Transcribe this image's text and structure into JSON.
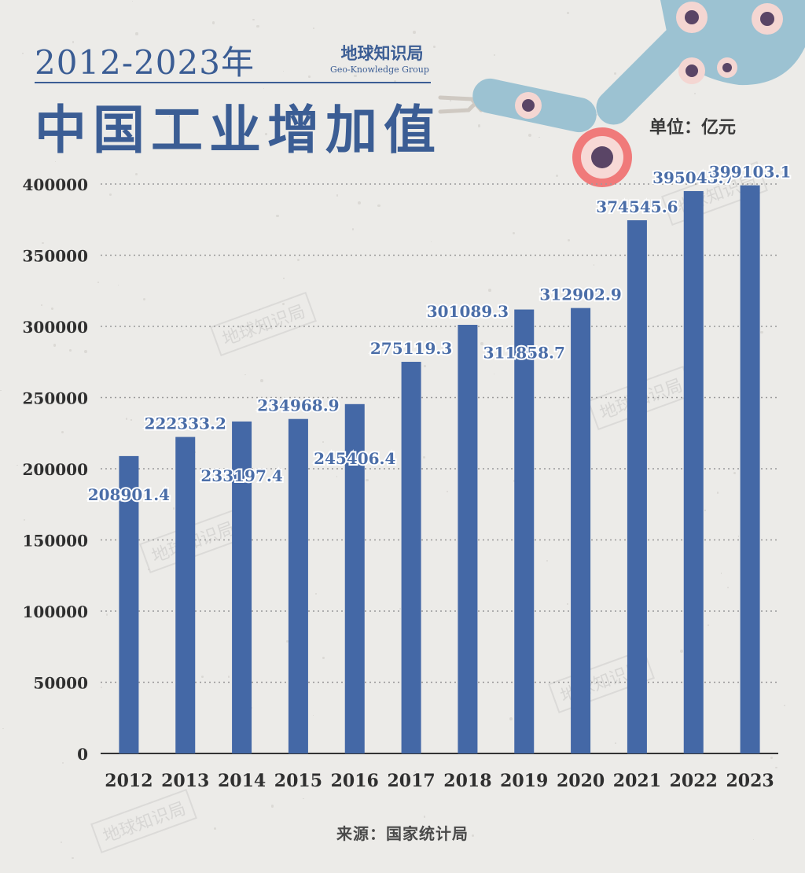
{
  "header": {
    "years": "2012-2023年",
    "title": "中国工业增加值",
    "brand_cn": "地球知识局",
    "brand_en": "Geo-Knowledge Group",
    "unit": "单位：亿元"
  },
  "footer": {
    "source": "来源：国家统计局"
  },
  "watermark_text": "地球知识局",
  "colors": {
    "bar": "#4468a6",
    "text": "#3b5d94",
    "background": "#ecebe8"
  },
  "chart_data": {
    "type": "bar",
    "categories": [
      "2012",
      "2013",
      "2014",
      "2015",
      "2016",
      "2017",
      "2018",
      "2019",
      "2020",
      "2021",
      "2022",
      "2023"
    ],
    "values": [
      208901.4,
      222333.2,
      233197.4,
      234968.9,
      245406.4,
      275119.3,
      301089.3,
      311858.7,
      312902.9,
      374545.6,
      395043.7,
      399103.1
    ],
    "value_labels": [
      "208901.4",
      "222333.2",
      "233197.4",
      "234968.9",
      "245406.4",
      "275119.3",
      "301089.3",
      "311858.7",
      "312902.9",
      "374545.6",
      "395043.7",
      "399103.1"
    ],
    "yticks": [
      "0",
      "50000",
      "100000",
      "150000",
      "200000",
      "250000",
      "300000",
      "350000",
      "400000"
    ],
    "ylim": [
      0,
      400000
    ],
    "grid": true,
    "legend": "none"
  }
}
